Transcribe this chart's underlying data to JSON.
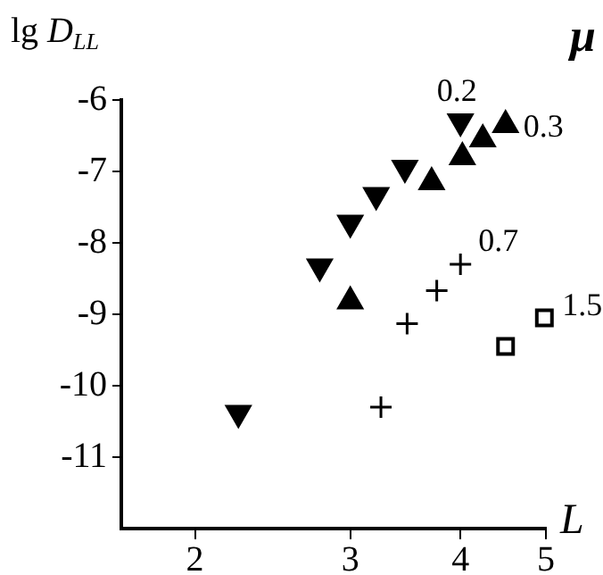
{
  "chart_data": {
    "type": "scatter",
    "xlabel": "L",
    "ylabel": "lg D$_{LL}$",
    "annotations": [
      "μ"
    ],
    "log": "x",
    "xlim": [
      1.65,
      5
    ],
    "xticks": [
      2,
      3,
      4,
      5
    ],
    "ylim": [
      -12,
      -6
    ],
    "yticks": [
      -6,
      -7,
      -8,
      -9,
      -10,
      -11
    ],
    "grid": false,
    "legend": false,
    "series": [
      {
        "name": "0.2",
        "color": "#000000",
        "marker": "triangle-down",
        "x": [
          2.24,
          2.77,
          3.0,
          3.21,
          3.46,
          4.0
        ],
        "values": [
          -10.38,
          -8.33,
          -7.72,
          -7.33,
          -6.95,
          -6.3
        ]
      },
      {
        "name": "0.3",
        "color": "#000000",
        "marker": "triangle",
        "x": [
          3.0,
          3.71,
          4.02,
          4.24,
          4.5
        ],
        "values": [
          -8.82,
          -7.15,
          -6.8,
          -6.55,
          -6.35
        ]
      },
      {
        "name": "0.7",
        "color": "#000000",
        "marker": "cross",
        "x": [
          3.25,
          3.48,
          3.76,
          4.0
        ],
        "values": [
          -10.3,
          -9.13,
          -8.67,
          -8.3
        ]
      },
      {
        "name": "1.5",
        "color": "#000000",
        "marker": "square",
        "x": [
          4.5,
          4.98
        ],
        "values": [
          -9.45,
          -9.05
        ]
      }
    ]
  }
}
